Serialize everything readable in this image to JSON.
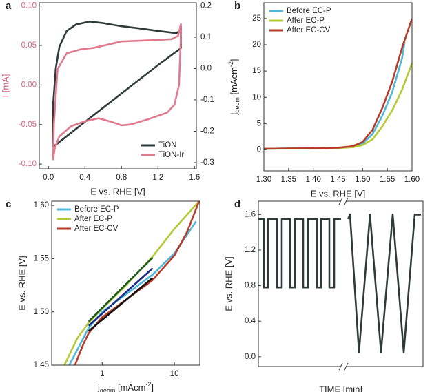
{
  "chart_data": [
    {
      "type": "line",
      "panel": "a",
      "xlabel": "E vs. RHE [V]",
      "ylabel": "I [mA]",
      "ycolor": "#d8637f",
      "xlim": [
        -0.1,
        1.62
      ],
      "xticks": [
        {
          "value": 0,
          "label": "0.0"
        },
        0.4,
        0.8,
        1.2,
        1.6
      ],
      "ylim": [
        -0.106,
        0.104
      ],
      "yticks": [
        {
          "value": -0.1,
          "label": "-0.10"
        },
        {
          "value": -0.05,
          "label": "-0.05"
        },
        {
          "value": 0,
          "label": "0.00"
        },
        {
          "value": 0.05,
          "label": "0.05"
        },
        {
          "value": 0.1,
          "label": "0.10"
        }
      ],
      "y2lim": [
        -0.32,
        0.21
      ],
      "y2ticks": [
        -0.3,
        -0.2,
        -0.1,
        {
          "value": 0,
          "label": "0.0"
        },
        0.1,
        0.2
      ],
      "legend": "lower right",
      "series": [
        {
          "name": "TiON",
          "color": "#2f3a3a",
          "axis": "y2",
          "x": [
            0.05,
            0.05,
            0.08,
            0.12,
            0.2,
            0.3,
            0.45,
            0.6,
            0.8,
            1.0,
            1.2,
            1.4,
            1.44,
            1.45,
            1.45,
            1.2,
            0.9,
            0.6,
            0.3,
            0.1,
            0.05
          ],
          "values": [
            -0.25,
            -0.12,
            0.0,
            0.07,
            0.12,
            0.14,
            0.15,
            0.145,
            0.135,
            0.128,
            0.12,
            0.113,
            0.12,
            0.135,
            0.065,
            0.011,
            -0.057,
            -0.125,
            -0.193,
            -0.239,
            -0.25
          ]
        },
        {
          "name": "TiON-Ir",
          "color": "#e07a8e",
          "x": [
            0.05,
            0.06,
            0.1,
            0.2,
            0.35,
            0.5,
            0.65,
            0.8,
            1.0,
            1.2,
            1.35,
            1.42,
            1.45,
            1.45,
            1.43,
            1.38,
            1.3,
            1.1,
            0.9,
            0.8,
            0.7,
            0.55,
            0.4,
            0.25,
            0.12,
            0.07,
            0.05
          ],
          "values": [
            -0.095,
            -0.05,
            0.02,
            0.04,
            0.045,
            0.047,
            0.051,
            0.055,
            0.056,
            0.057,
            0.058,
            0.062,
            0.077,
            0.06,
            0.0,
            -0.025,
            -0.035,
            -0.043,
            -0.05,
            -0.051,
            -0.047,
            -0.042,
            -0.046,
            -0.052,
            -0.065,
            -0.08,
            -0.095
          ]
        }
      ]
    },
    {
      "type": "line",
      "panel": "b",
      "xlabel": "E vs. RHE [V]",
      "ylabel": {
        "main": "j",
        "sub": "geom",
        "unit": " [mAcm",
        "sup": "-2",
        "close": "]"
      },
      "xlim": [
        1.3,
        1.6
      ],
      "xticks": [
        {
          "value": 1.3,
          "label": "1.30"
        },
        1.35,
        {
          "value": 1.4,
          "label": "1.40"
        },
        1.45,
        {
          "value": 1.5,
          "label": "1.50"
        },
        1.55,
        {
          "value": 1.6,
          "label": "1.60"
        }
      ],
      "ylim": [
        -4,
        28
      ],
      "yticks": [
        0,
        5,
        10,
        15,
        20,
        25
      ],
      "legend": "upper left",
      "series": [
        {
          "name": "Before EC-P",
          "color": "#4fb8d8",
          "x": [
            1.3,
            1.35,
            1.4,
            1.45,
            1.48,
            1.5,
            1.52,
            1.54,
            1.56,
            1.58,
            1.585
          ],
          "values": [
            0.2,
            0.25,
            0.3,
            0.4,
            0.6,
            1.2,
            3,
            6.5,
            11,
            17.5,
            20.5
          ]
        },
        {
          "name": "After EC-P",
          "color": "#b5c935",
          "x": [
            1.3,
            1.35,
            1.4,
            1.45,
            1.48,
            1.5,
            1.52,
            1.54,
            1.56,
            1.58,
            1.6
          ],
          "values": [
            0.2,
            0.25,
            0.3,
            0.35,
            0.5,
            0.9,
            2,
            4.5,
            7.5,
            11.5,
            16.5
          ]
        },
        {
          "name": "After EC-CV",
          "color": "#b83a2a",
          "x": [
            1.3,
            1.35,
            1.4,
            1.45,
            1.48,
            1.5,
            1.52,
            1.54,
            1.56,
            1.58,
            1.6
          ],
          "values": [
            0.2,
            0.25,
            0.3,
            0.4,
            0.7,
            1.5,
            3.8,
            8,
            13,
            19.5,
            25
          ]
        }
      ]
    },
    {
      "type": "line",
      "panel": "c",
      "xscale": "log",
      "xlabel": {
        "main": "j",
        "sub": "geom",
        "unit": " [mAcm",
        "sup": "-2",
        "close": "]"
      },
      "ylabel": "E vs. RHE [V]",
      "xlim": [
        0.2,
        22.5
      ],
      "xticks": [
        1,
        10
      ],
      "ylim": [
        1.45,
        1.604
      ],
      "yticks": [
        1.45,
        {
          "value": 1.5,
          "label": "1.50"
        },
        1.55,
        {
          "value": 1.6,
          "label": "1.60"
        }
      ],
      "legend": "upper left",
      "series": [
        {
          "name": "Before EC-P",
          "color": "#4fb8d8",
          "x": [
            0.35,
            0.5,
            0.65,
            1,
            2,
            5,
            10,
            20
          ],
          "values": [
            1.45,
            1.47,
            1.485,
            1.5,
            1.515,
            1.535,
            1.555,
            1.585
          ]
        },
        {
          "name": "After EC-P",
          "color": "#b5c935",
          "x": [
            0.3,
            0.45,
            0.65,
            1,
            2,
            5,
            10,
            22
          ],
          "values": [
            1.45,
            1.475,
            1.49,
            1.503,
            1.523,
            1.552,
            1.578,
            1.604
          ]
        },
        {
          "name": "After EC-CV",
          "color": "#b83a2a",
          "x": [
            0.42,
            0.55,
            0.65,
            1,
            2,
            5,
            10,
            15,
            22
          ],
          "values": [
            1.45,
            1.47,
            1.48,
            1.495,
            1.51,
            1.53,
            1.553,
            1.575,
            1.604
          ]
        }
      ],
      "fits": [
        {
          "color": "#1e5a1e",
          "x": [
            0.65,
            5
          ],
          "values": [
            1.491,
            1.551
          ]
        },
        {
          "color": "#1a2a80",
          "x": [
            0.65,
            5
          ],
          "values": [
            1.487,
            1.541
          ]
        },
        {
          "color": "#111111",
          "x": [
            0.65,
            5
          ],
          "values": [
            1.482,
            1.532
          ]
        }
      ]
    },
    {
      "type": "line",
      "panel": "d",
      "xlabel": "TIME [min]",
      "ylabel": "E vs. RHE [V]",
      "xlim": [
        0,
        239
      ],
      "ylim": [
        -0.11,
        1.75
      ],
      "yticks": [
        {
          "value": 0,
          "label": "0.0"
        },
        0.4,
        0.8,
        1.2,
        1.6
      ],
      "series": [
        {
          "color": "#2f3a3a",
          "x": [
            0,
            8,
            8,
            14,
            14,
            27,
            27,
            34,
            34,
            46,
            46,
            53,
            53,
            65,
            65,
            72,
            72,
            85,
            85,
            91,
            91,
            103,
            103,
            110,
            110,
            120,
            null,
            130,
            133,
            146,
            162,
            178,
            195,
            211,
            227,
            236
          ],
          "values": [
            1.55,
            1.55,
            0.78,
            0.78,
            1.55,
            1.55,
            0.78,
            0.78,
            1.55,
            1.55,
            0.78,
            0.78,
            1.55,
            1.55,
            0.78,
            0.78,
            1.55,
            1.55,
            0.78,
            0.78,
            1.55,
            1.55,
            0.78,
            0.78,
            1.55,
            1.55,
            null,
            1.55,
            1.6,
            0.05,
            1.6,
            0.05,
            1.6,
            0.05,
            1.6,
            1.6
          ]
        }
      ]
    }
  ]
}
